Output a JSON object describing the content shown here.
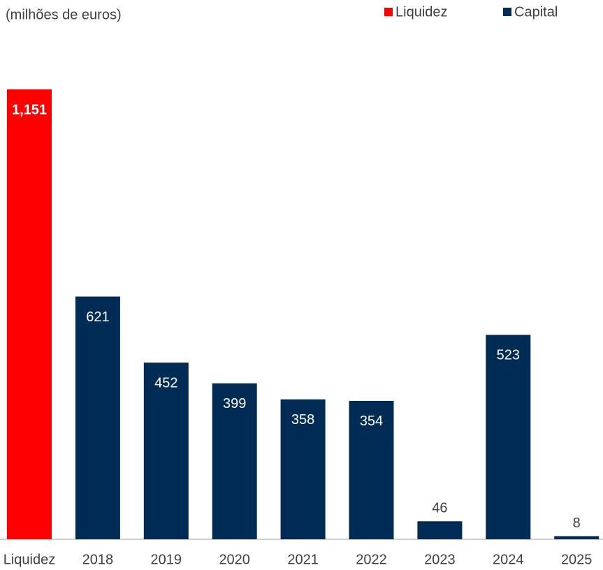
{
  "chart_data": {
    "type": "bar",
    "subtitle": "(milhões de euros)",
    "categories": [
      "Liquidez",
      "2018",
      "2019",
      "2020",
      "2021",
      "2022",
      "2023",
      "2024",
      "2025"
    ],
    "series": [
      {
        "name": "Liquidez",
        "color": "#ff0000",
        "values": [
          1151,
          null,
          null,
          null,
          null,
          null,
          null,
          null,
          null
        ],
        "value_labels": [
          "1,151",
          null,
          null,
          null,
          null,
          null,
          null,
          null,
          null
        ]
      },
      {
        "name": "Capital",
        "color": "#002b54",
        "values": [
          null,
          621,
          452,
          399,
          358,
          354,
          46,
          523,
          8
        ]
      }
    ],
    "legend": "top-right"
  }
}
